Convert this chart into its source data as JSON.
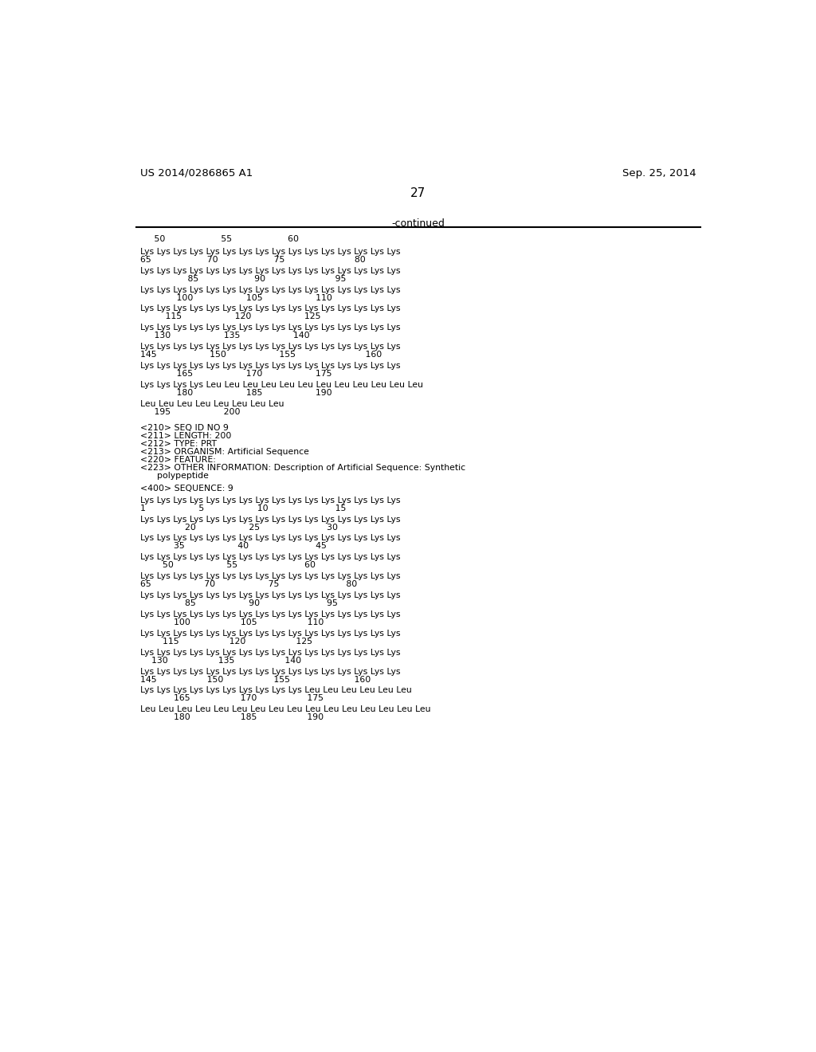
{
  "header_left": "US 2014/0286865 A1",
  "header_right": "Sep. 25, 2014",
  "page_number": "27",
  "continued_label": "-continued",
  "background_color": "#ffffff",
  "text_color": "#000000",
  "mono_font": "Courier New",
  "section1_ruler": "     50                    55                    60",
  "section1_lines": [
    [
      "Lys Lys Lys Lys Lys Lys Lys Lys Lys Lys Lys Lys Lys Lys Lys Lys",
      "65                    70                    75                         80"
    ],
    [
      "Lys Lys Lys Lys Lys Lys Lys Lys Lys Lys Lys Lys Lys Lys Lys Lys",
      "                 85                    90                         95"
    ],
    [
      "Lys Lys Lys Lys Lys Lys Lys Lys Lys Lys Lys Lys Lys Lys Lys Lys",
      "             100                   105                   110"
    ],
    [
      "Lys Lys Lys Lys Lys Lys Lys Lys Lys Lys Lys Lys Lys Lys Lys Lys",
      "         115                   120                   125"
    ],
    [
      "Lys Lys Lys Lys Lys Lys Lys Lys Lys Lys Lys Lys Lys Lys Lys Lys",
      "     130                   135                   140"
    ],
    [
      "Lys Lys Lys Lys Lys Lys Lys Lys Lys Lys Lys Lys Lys Lys Lys Lys",
      "145                   150                   155                         160"
    ],
    [
      "Lys Lys Lys Lys Lys Lys Lys Lys Lys Lys Lys Lys Lys Lys Lys Lys",
      "             165                   170                   175"
    ],
    [
      "Lys Lys Lys Lys Leu Leu Leu Leu Leu Leu Leu Leu Leu Leu Leu Leu",
      "             180                   185                   190"
    ],
    [
      "Leu Leu Leu Leu Leu Leu Leu Leu",
      "     195                   200"
    ]
  ],
  "section2_meta": [
    "<210> SEQ ID NO 9",
    "<211> LENGTH: 200",
    "<212> TYPE: PRT",
    "<213> ORGANISM: Artificial Sequence",
    "<220> FEATURE:",
    "<223> OTHER INFORMATION: Description of Artificial Sequence: Synthetic",
    "      polypeptide"
  ],
  "section2_seq_label": "<400> SEQUENCE: 9",
  "section2_lines": [
    [
      "Lys Lys Lys Lys Lys Lys Lys Lys Lys Lys Lys Lys Lys Lys Lys Lys",
      "1                   5                   10                        15"
    ],
    [
      "Lys Lys Lys Lys Lys Lys Lys Lys Lys Lys Lys Lys Lys Lys Lys Lys",
      "                20                   25                        30"
    ],
    [
      "Lys Lys Lys Lys Lys Lys Lys Lys Lys Lys Lys Lys Lys Lys Lys Lys",
      "            35                   40                        45"
    ],
    [
      "Lys Lys Lys Lys Lys Lys Lys Lys Lys Lys Lys Lys Lys Lys Lys Lys",
      "        50                   55                        60"
    ],
    [
      "Lys Lys Lys Lys Lys Lys Lys Lys Lys Lys Lys Lys Lys Lys Lys Lys",
      "65                   70                   75                        80"
    ],
    [
      "Lys Lys Lys Lys Lys Lys Lys Lys Lys Lys Lys Lys Lys Lys Lys Lys",
      "                85                   90                        95"
    ],
    [
      "Lys Lys Lys Lys Lys Lys Lys Lys Lys Lys Lys Lys Lys Lys Lys Lys",
      "            100                  105                  110"
    ],
    [
      "Lys Lys Lys Lys Lys Lys Lys Lys Lys Lys Lys Lys Lys Lys Lys Lys",
      "        115                  120                  125"
    ],
    [
      "Lys Lys Lys Lys Lys Lys Lys Lys Lys Lys Lys Lys Lys Lys Lys Lys",
      "    130                  135                  140"
    ],
    [
      "Lys Lys Lys Lys Lys Lys Lys Lys Lys Lys Lys Lys Lys Lys Lys Lys",
      "145                  150                  155                       160"
    ],
    [
      "Lys Lys Lys Lys Lys Lys Lys Lys Lys Lys Leu Leu Leu Leu Leu Leu",
      "            165                  170                  175"
    ],
    [
      "Leu Leu Leu Leu Leu Leu Leu Leu Leu Leu Leu Leu Leu Leu Leu Leu",
      "            180                  185                  190"
    ]
  ]
}
